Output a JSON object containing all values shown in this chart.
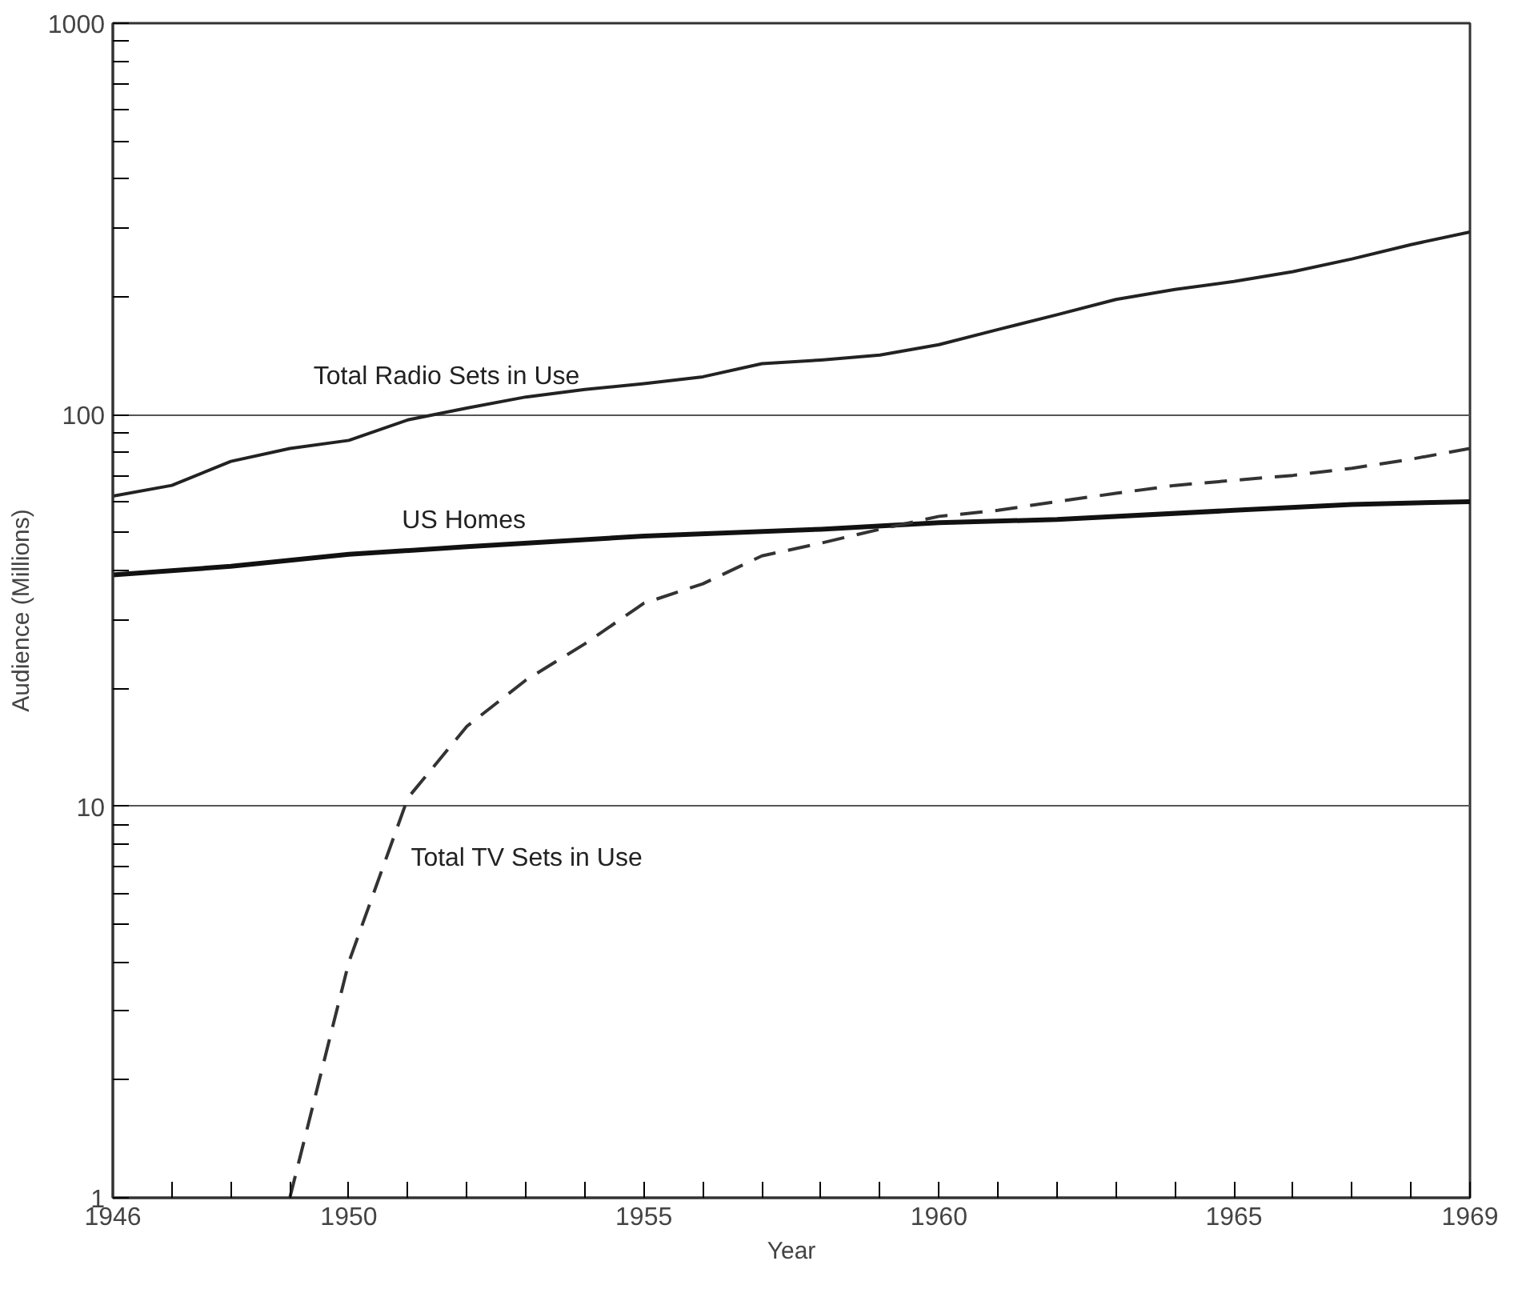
{
  "chart_data": {
    "type": "line",
    "xlabel": "Year",
    "ylabel": "Audience (Millions)",
    "log": "y",
    "grid": "y",
    "xlim": [
      1946,
      1969
    ],
    "ylim": [
      1,
      1000
    ],
    "xticks": [
      1946,
      {
        "value": 1947,
        "label": null
      },
      {
        "value": 1948,
        "label": null
      },
      {
        "value": 1949,
        "label": null
      },
      1950,
      {
        "value": 1951,
        "label": null
      },
      {
        "value": 1952,
        "label": null
      },
      {
        "value": 1953,
        "label": null
      },
      {
        "value": 1954,
        "label": null
      },
      1955,
      {
        "value": 1956,
        "label": null
      },
      {
        "value": 1957,
        "label": null
      },
      {
        "value": 1958,
        "label": null
      },
      {
        "value": 1959,
        "label": null
      },
      1960,
      {
        "value": 1961,
        "label": null
      },
      {
        "value": 1962,
        "label": null
      },
      {
        "value": 1963,
        "label": null
      },
      {
        "value": 1964,
        "label": null
      },
      1965,
      {
        "value": 1966,
        "label": null
      },
      {
        "value": 1967,
        "label": null
      },
      {
        "value": 1968,
        "label": null
      },
      1969
    ],
    "yticks": [
      1,
      {
        "value": 2,
        "label": null
      },
      {
        "value": 3,
        "label": null
      },
      {
        "value": 4,
        "label": null
      },
      {
        "value": 5,
        "label": null
      },
      {
        "value": 6,
        "label": null
      },
      {
        "value": 7,
        "label": null
      },
      {
        "value": 8,
        "label": null
      },
      {
        "value": 9,
        "label": null
      },
      10,
      {
        "value": 20,
        "label": null
      },
      {
        "value": 30,
        "label": null
      },
      {
        "value": 40,
        "label": null
      },
      {
        "value": 50,
        "label": null
      },
      {
        "value": 60,
        "label": null
      },
      {
        "value": 70,
        "label": null
      },
      {
        "value": 80,
        "label": null
      },
      {
        "value": 90,
        "label": null
      },
      100,
      {
        "value": 200,
        "label": null
      },
      {
        "value": 300,
        "label": null
      },
      {
        "value": 400,
        "label": null
      },
      {
        "value": 500,
        "label": null
      },
      {
        "value": 600,
        "label": null
      },
      {
        "value": 700,
        "label": null
      },
      {
        "value": 800,
        "label": null
      },
      {
        "value": 900,
        "label": null
      },
      1000
    ],
    "series": [
      {
        "name": "Total Radio Sets in Use",
        "color": "#222222",
        "line_style": "solid",
        "x": [
          1946,
          1947,
          1948,
          1949,
          1950,
          1951,
          1952,
          1953,
          1954,
          1955,
          1956,
          1957,
          1958,
          1959,
          1960,
          1961,
          1962,
          1963,
          1964,
          1965,
          1966,
          1967,
          1968,
          1969
        ],
        "values": [
          62,
          66,
          76,
          82,
          86,
          97,
          104,
          111,
          116,
          120,
          125,
          135,
          138,
          142,
          151,
          165,
          180,
          197,
          209,
          219,
          232,
          250,
          272,
          293
        ]
      },
      {
        "name": "US Homes",
        "color": "#111111",
        "line_style": "solid",
        "x": [
          1946,
          1948,
          1950,
          1952,
          1955,
          1958,
          1960,
          1962,
          1965,
          1967,
          1969
        ],
        "values": [
          39,
          41,
          44,
          46,
          49,
          51,
          53,
          54,
          57,
          59,
          60
        ]
      },
      {
        "name": "Total TV Sets in Use",
        "color": "#333333",
        "line_style": "dashed",
        "x": [
          1949,
          1950,
          1951,
          1952,
          1953,
          1954,
          1955,
          1956,
          1957,
          1958,
          1959,
          1960,
          1961,
          1962,
          1963,
          1964,
          1965,
          1966,
          1967,
          1968,
          1969
        ],
        "values": [
          1,
          4,
          10.5,
          16,
          21,
          26,
          33,
          37,
          43.6,
          47,
          51,
          55,
          57,
          60,
          63,
          66,
          68,
          70,
          73,
          77,
          82
        ]
      }
    ]
  }
}
